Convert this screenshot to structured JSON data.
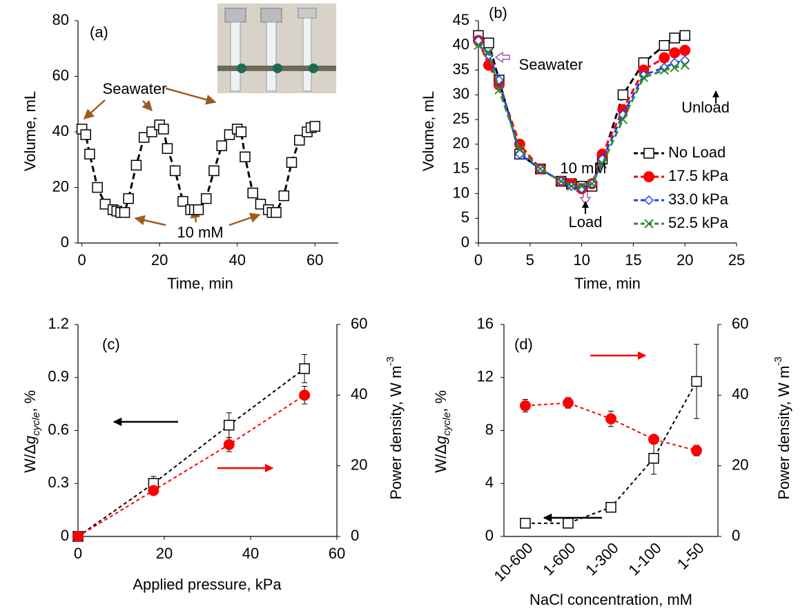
{
  "chart_data": [
    {
      "type": "line",
      "xlabel": "Time, min",
      "ylabel": [
        "Volume, mL"
      ],
      "xlim": [
        -1,
        66
      ],
      "xticks": [
        0,
        20,
        40,
        60
      ],
      "ylim": [
        0,
        80
      ],
      "yticks": [
        0,
        20,
        40,
        60,
        80
      ],
      "x": [
        0,
        1,
        2,
        4,
        6,
        8,
        9,
        10,
        11,
        12,
        14,
        16,
        18,
        20,
        21,
        22,
        24,
        26,
        28,
        29,
        30,
        32,
        34,
        36,
        38,
        40,
        41,
        42,
        44,
        46,
        48,
        49,
        50,
        52,
        54,
        56,
        58,
        59,
        60
      ],
      "series": [
        {
          "color": "#000000",
          "marker": "square",
          "values": [
            41,
            39,
            32,
            20,
            14,
            12,
            11.5,
            11,
            11,
            16,
            28,
            38,
            40,
            42.5,
            41,
            34,
            26,
            15,
            12,
            12,
            12,
            16,
            26,
            35,
            39,
            41,
            40,
            31,
            18,
            14,
            12,
            11,
            11,
            17,
            29,
            37,
            40,
            41.5,
            42
          ]
        }
      ],
      "annotations": [
        "(a)",
        "Seawater",
        "10 mM"
      ]
    },
    {
      "type": "line",
      "xlabel": "Time, min",
      "ylabel": [
        "Volume, mL"
      ],
      "xlim": [
        0,
        25
      ],
      "xticks": [
        0,
        5,
        10,
        15,
        20,
        25
      ],
      "ylim": [
        0,
        45
      ],
      "yticks": [
        0,
        5,
        10,
        15,
        20,
        25,
        30,
        35,
        40,
        45
      ],
      "legend": "right",
      "x": [
        0,
        1,
        2,
        4,
        6,
        8,
        9,
        10,
        11,
        12,
        14,
        16,
        18,
        19,
        20
      ],
      "series": [
        {
          "name": "No Load",
          "color": "#000000",
          "marker": "square",
          "values": [
            42,
            40.5,
            33,
            18,
            15,
            12.5,
            12,
            11.5,
            11.5,
            17,
            30,
            36.5,
            40,
            41.5,
            42
          ]
        },
        {
          "name": "17.5 kPa",
          "color": "#ff0000",
          "marker": "circle",
          "values": [
            41,
            36,
            32,
            20,
            15,
            12.5,
            12,
            11,
            12,
            18,
            27,
            35,
            37.5,
            38.5,
            39
          ]
        },
        {
          "name": "33.0 kPa",
          "color": "#1f3fff",
          "marker": "diamond",
          "values": [
            41,
            38,
            33,
            18,
            15,
            12.5,
            11.5,
            11,
            12,
            17,
            26,
            34,
            35.5,
            36.5,
            37
          ]
        },
        {
          "name": "52.5 kPa",
          "color": "#2e8b2e",
          "marker": "cross",
          "values": [
            40,
            38.5,
            31,
            19,
            15,
            12.5,
            11.5,
            11.5,
            12,
            16,
            25,
            33.5,
            35,
            35.5,
            36
          ]
        }
      ],
      "annotations": [
        "(b)",
        "Seawater",
        "10 mM",
        "Load",
        "Unload"
      ]
    },
    {
      "type": "line",
      "xlabel": "Applied pressure, kPa",
      "ylabel": [
        "W/Δ",
        "g",
        "cycle",
        ", %"
      ],
      "y2label": [
        "Power density, W m",
        "-3"
      ],
      "xlim": [
        0,
        60
      ],
      "xticks": [
        0,
        20,
        40,
        60
      ],
      "ylim": [
        0,
        1.2
      ],
      "yticks": [
        0,
        0.3,
        0.6,
        0.9,
        1.2
      ],
      "y2lim": [
        0,
        60
      ],
      "y2ticks": [
        0,
        20,
        40,
        60
      ],
      "x": [
        0,
        17.5,
        35,
        52.5
      ],
      "series": [
        {
          "color": "#000000",
          "marker": "square",
          "values": [
            0,
            0.3,
            0.63,
            0.95
          ],
          "errors": [
            0,
            0.04,
            0.07,
            0.08
          ]
        },
        {
          "color": "#ff0000",
          "marker": "circle",
          "axis": "y2",
          "values": [
            0,
            13,
            26,
            40
          ],
          "errors": [
            0,
            1,
            2,
            2.5
          ]
        }
      ],
      "annotations": [
        "(c)"
      ]
    },
    {
      "type": "line",
      "xlabel": "NaCl concentration, mM",
      "ylabel": [
        "W/Δ",
        "g",
        "cycle",
        ", %"
      ],
      "y2label": [
        "Power density, W m",
        "-3"
      ],
      "categories": [
        "10-600",
        "1-600",
        "1-300",
        "1-100",
        "1-50"
      ],
      "ylim": [
        0,
        16
      ],
      "yticks": [
        0,
        4,
        8,
        12,
        16
      ],
      "y2lim": [
        0,
        60
      ],
      "y2ticks": [
        0,
        20,
        40,
        60
      ],
      "series": [
        {
          "color": "#000000",
          "marker": "square",
          "values": [
            1.0,
            1.0,
            2.2,
            5.9,
            11.7
          ],
          "errors": [
            0.1,
            0.1,
            0.2,
            1.2,
            2.8
          ]
        },
        {
          "color": "#ff0000",
          "marker": "circle",
          "axis": "y2",
          "values": [
            37,
            37.8,
            33.3,
            27.5,
            24.3
          ],
          "errors": [
            1.8,
            1.5,
            2.2,
            0.8,
            1.5
          ]
        }
      ],
      "annotations": [
        "(d)"
      ]
    }
  ]
}
